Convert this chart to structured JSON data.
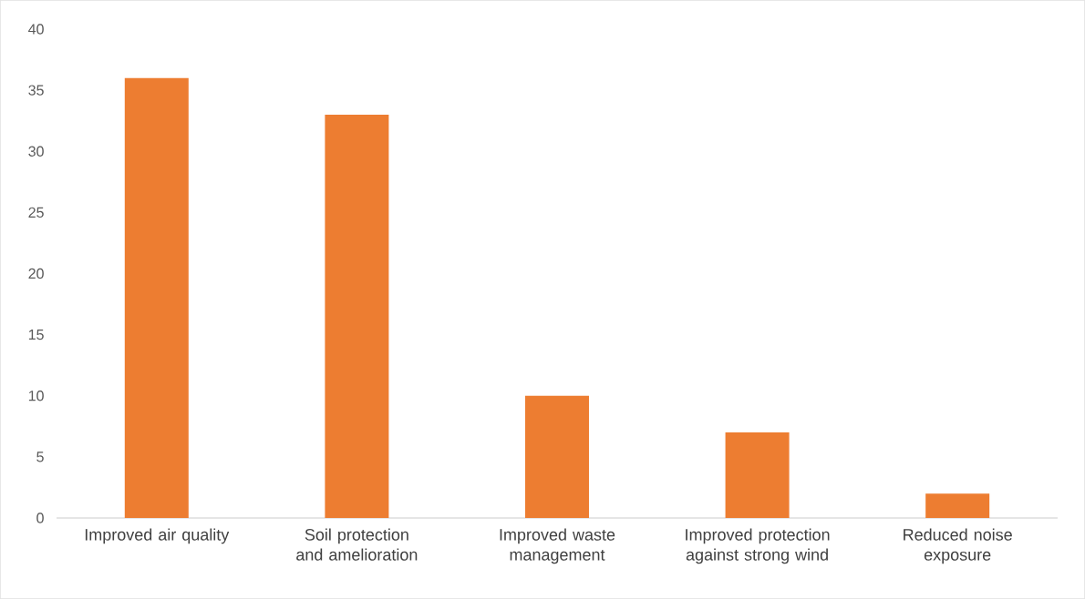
{
  "chart_data": {
    "type": "bar",
    "categories": [
      "Improved air quality",
      "Soil protection and amelioration",
      "Improved waste management",
      "Improved protection against strong wind",
      "Reduced noise exposure"
    ],
    "values": [
      36,
      33,
      10,
      7,
      2
    ],
    "color": "#ed7d31",
    "ylim": [
      0,
      40
    ],
    "yticks": [
      0,
      5,
      10,
      15,
      20,
      25,
      30,
      35,
      40
    ]
  }
}
